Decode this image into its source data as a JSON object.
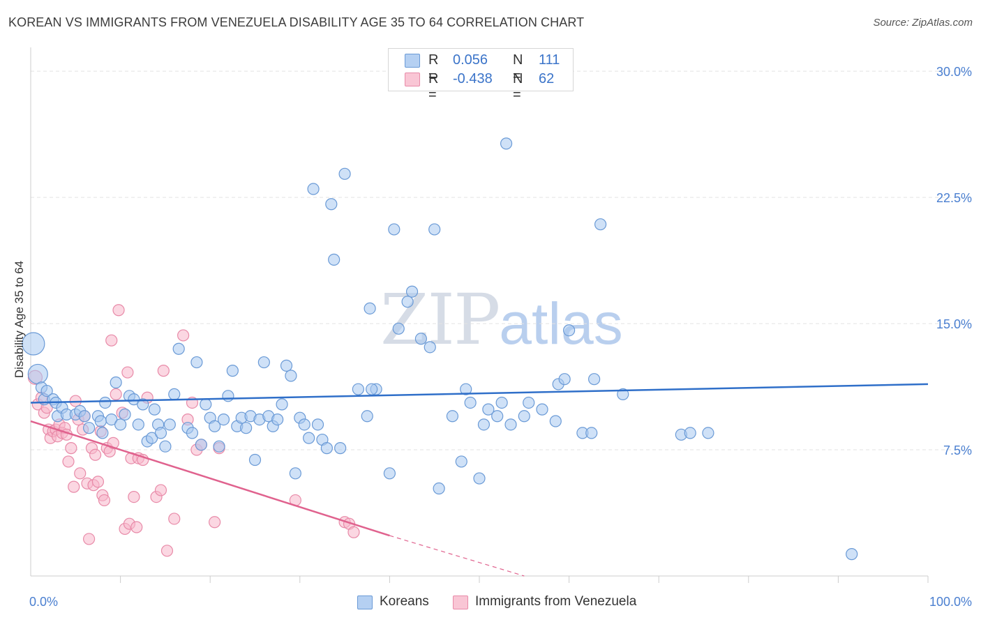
{
  "title": "KOREAN VS IMMIGRANTS FROM VENEZUELA DISABILITY AGE 35 TO 64 CORRELATION CHART",
  "source": "Source: ZipAtlas.com",
  "watermark": {
    "zip": "ZIP",
    "atlas": "atlas"
  },
  "stats": [
    {
      "r_label": "R =",
      "r_value": "0.056",
      "n_label": "N =",
      "n_value": "111"
    },
    {
      "r_label": "R =",
      "r_value": "-0.438",
      "n_label": "N =",
      "n_value": "62"
    }
  ],
  "colors": {
    "blue_fill": "#a8c8f0",
    "blue_stroke": "#6a9ad6",
    "blue_line": "#2f6fc9",
    "pink_fill": "#f7b6ca",
    "pink_stroke": "#e88aa8",
    "pink_line": "#e0628e",
    "grid": "#e3e3e3",
    "axis": "#cccccc",
    "tick_text": "#4a7fd0"
  },
  "chart_data": {
    "type": "scatter",
    "title": "KOREAN VS IMMIGRANTS FROM VENEZUELA DISABILITY AGE 35 TO 64 CORRELATION CHART",
    "xlabel": "",
    "ylabel": "Disability Age 35 to 64",
    "xlim": [
      0,
      100
    ],
    "ylim": [
      0,
      31
    ],
    "y_ticks": [
      {
        "value": 7.5,
        "label": "7.5%"
      },
      {
        "value": 15,
        "label": "15.0%"
      },
      {
        "value": 22.5,
        "label": "22.5%"
      },
      {
        "value": 30,
        "label": "30.0%"
      }
    ],
    "x_ticks": [
      {
        "value": 0,
        "label": "0.0%"
      },
      {
        "value": 100,
        "label": "100.0%"
      }
    ],
    "x_minor_ticks": [
      10,
      20,
      30,
      40,
      50,
      60,
      70,
      80,
      90,
      100
    ],
    "legend": [
      "Koreans",
      "Immigrants from Venezuela"
    ],
    "series": [
      {
        "name": "Koreans",
        "color": "blue",
        "trend": [
          [
            0,
            10.3
          ],
          [
            100,
            11.4
          ]
        ],
        "points": [
          [
            0.3,
            13.8,
            16
          ],
          [
            0.8,
            12.0,
            14
          ],
          [
            1.2,
            11.2,
            8
          ],
          [
            1.5,
            10.5,
            8
          ],
          [
            1.8,
            11.0,
            8
          ],
          [
            2.5,
            10.5,
            8
          ],
          [
            2.8,
            10.3,
            8
          ],
          [
            3.0,
            9.5,
            8
          ],
          [
            3.5,
            10.0,
            8
          ],
          [
            4.0,
            9.6,
            8
          ],
          [
            5.0,
            9.6,
            8
          ],
          [
            5.5,
            9.8,
            8
          ],
          [
            6.0,
            9.5,
            8
          ],
          [
            6.5,
            8.8,
            8
          ],
          [
            7.5,
            9.5,
            8
          ],
          [
            7.8,
            9.2,
            8
          ],
          [
            8.0,
            8.5,
            8
          ],
          [
            8.3,
            10.3,
            8
          ],
          [
            9.0,
            9.3,
            8
          ],
          [
            9.5,
            11.5,
            8
          ],
          [
            10.0,
            9.0,
            8
          ],
          [
            10.5,
            9.6,
            8
          ],
          [
            11.0,
            10.7,
            8
          ],
          [
            11.5,
            10.5,
            8
          ],
          [
            12.0,
            9.0,
            8
          ],
          [
            12.5,
            10.2,
            8
          ],
          [
            13.0,
            8.0,
            8
          ],
          [
            13.5,
            8.2,
            8
          ],
          [
            13.8,
            9.9,
            8
          ],
          [
            14.2,
            9.0,
            8
          ],
          [
            14.5,
            8.5,
            8
          ],
          [
            15.0,
            7.7,
            8
          ],
          [
            15.5,
            9.0,
            8
          ],
          [
            16.0,
            10.8,
            8
          ],
          [
            16.5,
            13.5,
            8
          ],
          [
            17.5,
            8.8,
            8
          ],
          [
            18.0,
            8.5,
            8
          ],
          [
            18.5,
            12.7,
            8
          ],
          [
            19.0,
            7.8,
            8
          ],
          [
            19.5,
            10.2,
            8
          ],
          [
            20.0,
            9.4,
            8
          ],
          [
            20.5,
            8.9,
            8
          ],
          [
            21.0,
            7.7,
            8
          ],
          [
            21.5,
            9.3,
            8
          ],
          [
            22.0,
            10.7,
            8
          ],
          [
            22.5,
            12.2,
            8
          ],
          [
            23.0,
            8.9,
            8
          ],
          [
            23.5,
            9.4,
            8
          ],
          [
            24.0,
            8.8,
            8
          ],
          [
            24.5,
            9.5,
            8
          ],
          [
            25.0,
            6.9,
            8
          ],
          [
            25.5,
            9.3,
            8
          ],
          [
            26.0,
            12.7,
            8
          ],
          [
            26.5,
            9.5,
            8
          ],
          [
            27.0,
            8.9,
            8
          ],
          [
            27.5,
            9.3,
            8
          ],
          [
            28.0,
            10.2,
            8
          ],
          [
            28.5,
            12.5,
            8
          ],
          [
            29.0,
            11.9,
            8
          ],
          [
            29.5,
            6.1,
            8
          ],
          [
            30.0,
            9.4,
            8
          ],
          [
            30.5,
            9.0,
            8
          ],
          [
            31.0,
            8.2,
            8
          ],
          [
            31.5,
            23.0,
            8
          ],
          [
            32.0,
            9.0,
            8
          ],
          [
            32.5,
            8.1,
            8
          ],
          [
            33.0,
            7.6,
            8
          ],
          [
            33.5,
            22.1,
            8
          ],
          [
            33.8,
            18.8,
            8
          ],
          [
            34.5,
            7.6,
            8
          ],
          [
            35.0,
            23.9,
            8
          ],
          [
            36.5,
            11.1,
            8
          ],
          [
            37.5,
            9.5,
            8
          ],
          [
            37.8,
            15.9,
            8
          ],
          [
            38.5,
            11.1,
            8
          ],
          [
            38.0,
            11.1,
            8
          ],
          [
            40.0,
            6.1,
            8
          ],
          [
            40.5,
            20.6,
            8
          ],
          [
            41.0,
            14.7,
            8
          ],
          [
            42.0,
            16.3,
            8
          ],
          [
            42.5,
            16.9,
            8
          ],
          [
            43.5,
            14.1,
            8
          ],
          [
            44.5,
            13.6,
            8
          ],
          [
            45.0,
            20.6,
            8
          ],
          [
            45.5,
            5.2,
            8
          ],
          [
            47.0,
            9.5,
            8
          ],
          [
            48.0,
            6.8,
            8
          ],
          [
            48.5,
            11.1,
            8
          ],
          [
            49.0,
            10.3,
            8
          ],
          [
            50.0,
            5.8,
            8
          ],
          [
            50.5,
            9.0,
            8
          ],
          [
            51.0,
            9.9,
            8
          ],
          [
            52.0,
            9.5,
            8
          ],
          [
            52.5,
            10.3,
            8
          ],
          [
            53.0,
            25.7,
            8
          ],
          [
            53.5,
            9.0,
            8
          ],
          [
            55.0,
            9.5,
            8
          ],
          [
            55.5,
            10.3,
            8
          ],
          [
            57.0,
            9.9,
            8
          ],
          [
            58.5,
            9.2,
            8
          ],
          [
            58.8,
            11.4,
            8
          ],
          [
            59.5,
            11.7,
            8
          ],
          [
            60.0,
            14.6,
            8
          ],
          [
            61.5,
            8.5,
            8
          ],
          [
            62.5,
            8.5,
            8
          ],
          [
            62.8,
            11.7,
            8
          ],
          [
            63.5,
            20.9,
            8
          ],
          [
            66.0,
            10.8,
            8
          ],
          [
            72.5,
            8.4,
            8
          ],
          [
            73.5,
            8.5,
            8
          ],
          [
            75.5,
            8.5,
            8
          ],
          [
            91.5,
            1.3,
            8
          ]
        ]
      },
      {
        "name": "Immigrants from Venezuela",
        "color": "pink",
        "trend": [
          [
            0,
            9.2
          ],
          [
            40,
            2.4
          ]
        ],
        "trend_dashed": [
          [
            40,
            2.4
          ],
          [
            55,
            0
          ]
        ],
        "points": [
          [
            0.5,
            11.8,
            10
          ],
          [
            0.8,
            10.2,
            8
          ],
          [
            1.2,
            10.6,
            8
          ],
          [
            1.5,
            9.7,
            8
          ],
          [
            1.8,
            10.0,
            8
          ],
          [
            2.0,
            8.7,
            8
          ],
          [
            2.2,
            8.2,
            8
          ],
          [
            2.5,
            8.6,
            8
          ],
          [
            2.8,
            8.7,
            8
          ],
          [
            3.0,
            8.3,
            8
          ],
          [
            3.2,
            9.0,
            8
          ],
          [
            3.5,
            8.5,
            8
          ],
          [
            3.8,
            8.8,
            8
          ],
          [
            4.0,
            8.4,
            8
          ],
          [
            4.2,
            6.8,
            8
          ],
          [
            4.5,
            7.6,
            8
          ],
          [
            4.8,
            5.3,
            8
          ],
          [
            5.0,
            10.4,
            8
          ],
          [
            5.3,
            9.3,
            8
          ],
          [
            5.5,
            6.1,
            8
          ],
          [
            5.8,
            8.7,
            8
          ],
          [
            6.0,
            9.5,
            8
          ],
          [
            6.3,
            5.5,
            8
          ],
          [
            6.5,
            2.2,
            8
          ],
          [
            6.8,
            7.6,
            8
          ],
          [
            7.0,
            5.4,
            8
          ],
          [
            7.2,
            7.2,
            8
          ],
          [
            7.5,
            5.6,
            8
          ],
          [
            7.8,
            8.6,
            8
          ],
          [
            8.0,
            4.8,
            8
          ],
          [
            8.2,
            4.5,
            8
          ],
          [
            8.5,
            7.6,
            8
          ],
          [
            8.8,
            7.4,
            8
          ],
          [
            9.0,
            14.0,
            8
          ],
          [
            9.2,
            7.9,
            8
          ],
          [
            9.5,
            10.8,
            8
          ],
          [
            9.8,
            15.8,
            8
          ],
          [
            10.2,
            9.7,
            8
          ],
          [
            10.5,
            2.8,
            8
          ],
          [
            10.8,
            12.1,
            8
          ],
          [
            11.0,
            3.1,
            8
          ],
          [
            11.2,
            7.0,
            8
          ],
          [
            11.5,
            4.7,
            8
          ],
          [
            11.8,
            2.9,
            8
          ],
          [
            12.0,
            7.0,
            8
          ],
          [
            12.5,
            6.9,
            8
          ],
          [
            13.0,
            10.6,
            8
          ],
          [
            14.0,
            4.7,
            8
          ],
          [
            14.5,
            5.1,
            8
          ],
          [
            14.8,
            12.2,
            8
          ],
          [
            15.2,
            1.5,
            8
          ],
          [
            16.0,
            3.4,
            8
          ],
          [
            17.0,
            14.3,
            8
          ],
          [
            17.5,
            9.3,
            8
          ],
          [
            18.0,
            10.3,
            8
          ],
          [
            18.5,
            7.5,
            8
          ],
          [
            19.0,
            7.8,
            8
          ],
          [
            20.5,
            3.2,
            8
          ],
          [
            21.0,
            7.6,
            8
          ],
          [
            29.5,
            4.5,
            8
          ],
          [
            35.0,
            3.2,
            8
          ],
          [
            35.5,
            3.1,
            8
          ],
          [
            36.0,
            2.6,
            8
          ]
        ]
      }
    ]
  }
}
